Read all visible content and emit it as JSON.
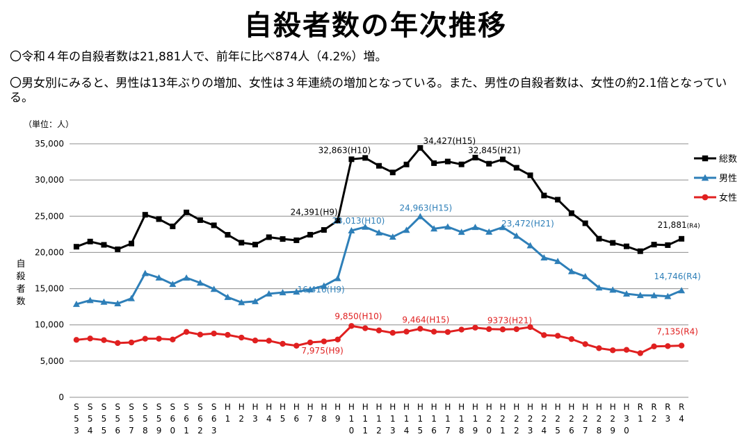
{
  "page": {
    "title": "自殺者数の年次推移",
    "line1": "〇令和４年の自殺者数は21,881人で、前年に比べ874人（4.2%）増。",
    "line2": "〇男女別にみると、男性は13年ぶりの増加、女性は３年連続の増加となっている。また、男性の自殺者数は、女性の約2.1倍となっている。",
    "unit_label": "（単位：人）",
    "y_axis_label": "自殺者数"
  },
  "colors": {
    "total": "#000000",
    "male": "#2e7fb8",
    "female": "#e02020",
    "grid": "#8c8c8c"
  },
  "chart_data": {
    "type": "line",
    "ylim": [
      0,
      35000
    ],
    "yticks": [
      "0",
      "5,000",
      "10,000",
      "15,000",
      "20,000",
      "25,000",
      "30,000",
      "35,000"
    ],
    "grid": true,
    "legend_position": "right",
    "categories": [
      "S53",
      "S54",
      "S55",
      "S56",
      "S57",
      "S58",
      "S59",
      "S60",
      "S61",
      "S62",
      "S63",
      "H1",
      "H2",
      "H3",
      "H4",
      "H5",
      "H6",
      "H7",
      "H8",
      "H9",
      "H10",
      "H11",
      "H12",
      "H13",
      "H14",
      "H15",
      "H16",
      "H17",
      "H18",
      "H19",
      "H20",
      "H21",
      "H22",
      "H23",
      "H24",
      "H25",
      "H26",
      "H27",
      "H28",
      "H29",
      "H30",
      "R1",
      "R2",
      "R3",
      "R4"
    ],
    "series": [
      {
        "name": "総数",
        "key": "total",
        "marker": "square",
        "values": [
          20788,
          21503,
          21048,
          20434,
          21228,
          25202,
          24596,
          23599,
          25524,
          24460,
          23742,
          22436,
          21346,
          21084,
          22104,
          21851,
          21679,
          22445,
          23104,
          24391,
          32863,
          33048,
          31957,
          31042,
          32143,
          34427,
          32325,
          32552,
          32155,
          33093,
          32249,
          32845,
          31690,
          30651,
          27858,
          27283,
          25427,
          24025,
          21897,
          21321,
          20840,
          20169,
          21081,
          21007,
          21881
        ]
      },
      {
        "name": "男性",
        "key": "male",
        "marker": "triangle",
        "values": [
          12859,
          13386,
          13155,
          12942,
          13654,
          17116,
          16508,
          15624,
          16497,
          15802,
          14934,
          13818,
          13102,
          13242,
          14296,
          14468,
          14560,
          14874,
          15393,
          16416,
          23013,
          23512,
          22727,
          22144,
          23080,
          24963,
          23272,
          23540,
          22813,
          23478,
          22831,
          23472,
          22283,
          20955,
          19273,
          18787,
          17386,
          16681,
          15121,
          14826,
          14290,
          14078,
          14055,
          13939,
          14746
        ]
      },
      {
        "name": "女性",
        "key": "female",
        "marker": "circle",
        "values": [
          7929,
          8117,
          7893,
          7492,
          7574,
          8086,
          8088,
          7975,
          9027,
          8658,
          8808,
          8618,
          8244,
          7842,
          7808,
          7383,
          7119,
          7571,
          7711,
          7975,
          9850,
          9536,
          9230,
          8898,
          9063,
          9464,
          9053,
          9012,
          9342,
          9615,
          9418,
          9373,
          9407,
          9696,
          8585,
          8496,
          8041,
          7344,
          6776,
          6495,
          6550,
          6091,
          7026,
          7068,
          7135
        ]
      }
    ],
    "annotations": [
      {
        "series": "total",
        "index": 19,
        "text": "24,391(H9)"
      },
      {
        "series": "total",
        "index": 20,
        "text": "32,863(H10)"
      },
      {
        "series": "total",
        "index": 25,
        "text": "34,427(H15)"
      },
      {
        "series": "total",
        "index": 31,
        "text": "32,845(H21)"
      },
      {
        "series": "total",
        "index": 44,
        "text": "21,881",
        "suffix": "(R4)"
      },
      {
        "series": "male",
        "index": 19,
        "text": "16,416(H9)"
      },
      {
        "series": "male",
        "index": 20,
        "text": "23,013(H10)"
      },
      {
        "series": "male",
        "index": 25,
        "text": "24,963(H15)"
      },
      {
        "series": "male",
        "index": 31,
        "text": "23,472(H21)"
      },
      {
        "series": "male",
        "index": 44,
        "text": "14,746(R4)"
      },
      {
        "series": "female",
        "index": 19,
        "text": "7,975(H9)"
      },
      {
        "series": "female",
        "index": 20,
        "text": "9,850(H10)"
      },
      {
        "series": "female",
        "index": 25,
        "text": "9,464(H15)"
      },
      {
        "series": "female",
        "index": 31,
        "text": "9373(H21)"
      },
      {
        "series": "female",
        "index": 44,
        "text": "7,135(R4)"
      }
    ]
  }
}
